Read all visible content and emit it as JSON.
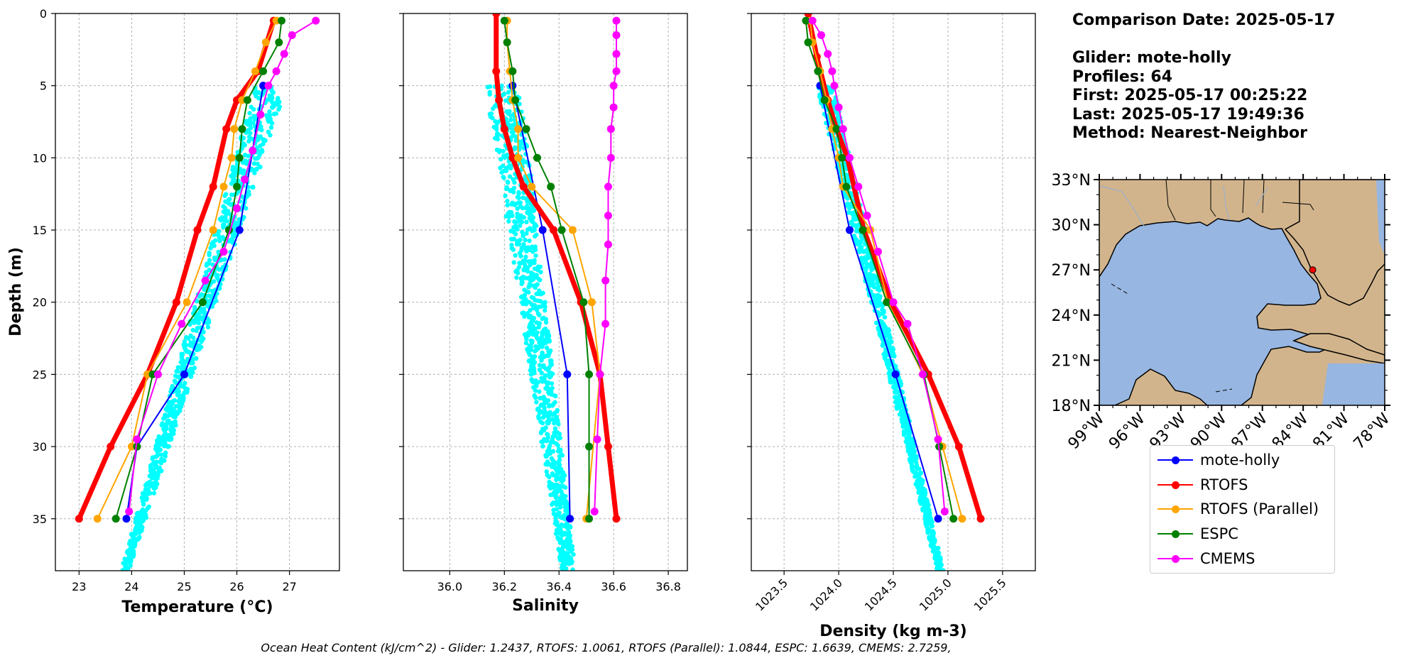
{
  "info": {
    "comparison_date": "Comparison Date: 2025-05-17",
    "glider": "Glider: mote-holly",
    "profiles": "Profiles: 64",
    "first": "First: 2025-05-17 00:25:22",
    "last": "Last: 2025-05-17 19:49:36",
    "method": "Method: Nearest-Neighbor"
  },
  "footer": "Ocean Heat Content (kJ/cm^2) - Glider: 1.2437,  RTOFS: 1.0061,  RTOFS (Parallel): 1.0844,  ESPC: 1.6639,  CMEMS: 2.7259,",
  "legend": [
    {
      "label": "mote-holly",
      "color": "#0000ff"
    },
    {
      "label": "RTOFS",
      "color": "#ff0000"
    },
    {
      "label": "RTOFS (Parallel)",
      "color": "#ffa500"
    },
    {
      "label": "ESPC",
      "color": "#008000"
    },
    {
      "label": "CMEMS",
      "color": "#ff00ff"
    }
  ],
  "colors": {
    "glider_scatter": "#00ffff",
    "land": "#d2b48c",
    "ocean": "#97b6e1",
    "marker": "#ff0000"
  },
  "chart_data": [
    {
      "type": "line",
      "xlabel": "Temperature (°C)",
      "ylabel": "Depth (m)",
      "xlim": [
        22.55,
        27.95
      ],
      "ylim": [
        38.6,
        0
      ],
      "xticks": [
        23,
        24,
        25,
        26,
        27
      ],
      "yticks": [
        0,
        5,
        10,
        15,
        20,
        25,
        30,
        35
      ],
      "grid": true,
      "scatter": {
        "name": "mote-holly",
        "depth_range": [
          5,
          38.6
        ],
        "x_min_at_top": 26.35,
        "x_max_at_top": 26.95,
        "x_min_at_bottom": 23.8,
        "x_max_at_bottom": 23.95
      },
      "series": [
        {
          "name": "mote-holly",
          "x": [
            26.5,
            26.05,
            25.0,
            24.1,
            23.9
          ],
          "y": [
            5,
            15,
            25,
            30,
            35
          ]
        },
        {
          "name": "RTOFS",
          "x": [
            26.7,
            26.4,
            26.0,
            25.8,
            25.55,
            25.25,
            24.85,
            24.3,
            23.6,
            23.0
          ],
          "y": [
            0.5,
            4,
            6,
            8,
            12,
            15,
            20,
            25,
            30,
            35
          ]
        },
        {
          "name": "RTOFS (Parallel)",
          "x": [
            26.75,
            26.55,
            26.35,
            26.1,
            25.95,
            25.9,
            25.75,
            25.55,
            25.05,
            24.3,
            24.0,
            23.35
          ],
          "y": [
            0.5,
            2,
            4,
            6,
            8,
            10,
            12,
            15,
            20,
            25,
            30,
            35
          ]
        },
        {
          "name": "ESPC",
          "x": [
            26.85,
            26.8,
            26.5,
            26.2,
            26.1,
            26.05,
            26.0,
            25.85,
            25.35,
            24.4,
            24.1,
            23.7
          ],
          "y": [
            0.5,
            2,
            4,
            6,
            8,
            10,
            12,
            15,
            20,
            25,
            30,
            35
          ]
        },
        {
          "name": "CMEMS",
          "x": [
            27.5,
            27.05,
            26.9,
            26.75,
            26.6,
            26.45,
            26.3,
            26.15,
            26.0,
            25.75,
            25.4,
            24.95,
            24.5,
            24.1,
            23.95
          ],
          "y": [
            0.5,
            1.5,
            2.8,
            4,
            5,
            7,
            9.5,
            11.5,
            13.5,
            16.5,
            18.5,
            21.5,
            25,
            29.5,
            34.5
          ]
        }
      ]
    },
    {
      "type": "line",
      "xlabel": "Salinity",
      "ylim": [
        38.6,
        0
      ],
      "xlim": [
        35.83,
        36.87
      ],
      "xticks": [
        36.0,
        36.2,
        36.4,
        36.6,
        36.8
      ],
      "grid": true,
      "scatter": {
        "name": "mote-holly",
        "depth_range": [
          5,
          38.6
        ],
        "x_min_at_top": 36.13,
        "x_max_at_top": 36.26,
        "x_min_at_bottom": 36.41,
        "x_max_at_bottom": 36.46
      },
      "series": [
        {
          "name": "mote-holly",
          "x": [
            36.23,
            36.34,
            36.43,
            36.44
          ],
          "y": [
            5,
            15,
            25,
            35
          ]
        },
        {
          "name": "RTOFS",
          "x": [
            36.17,
            36.17,
            36.18,
            36.2,
            36.23,
            36.27,
            36.38,
            36.48,
            36.55,
            36.58,
            36.61
          ],
          "y": [
            0,
            4,
            6,
            8,
            10,
            12,
            15,
            20,
            25,
            30,
            35
          ]
        },
        {
          "name": "RTOFS (Parallel)",
          "x": [
            36.21,
            36.21,
            36.22,
            36.23,
            36.25,
            36.25,
            36.3,
            36.45,
            36.52,
            36.55,
            36.5
          ],
          "y": [
            0.5,
            2,
            4,
            6,
            8,
            10,
            12,
            15,
            20,
            25,
            35
          ]
        },
        {
          "name": "ESPC",
          "x": [
            36.2,
            36.21,
            36.23,
            36.24,
            36.28,
            36.32,
            36.37,
            36.41,
            36.49,
            36.51,
            36.51,
            36.51
          ],
          "y": [
            0.5,
            2,
            4,
            6,
            8,
            10,
            12,
            15,
            20,
            25,
            30,
            35
          ]
        },
        {
          "name": "CMEMS",
          "x": [
            36.61,
            36.61,
            36.61,
            36.61,
            36.6,
            36.6,
            36.59,
            36.59,
            36.58,
            36.58,
            36.58,
            36.57,
            36.57,
            36.55,
            36.54,
            36.53
          ],
          "y": [
            0.5,
            1.5,
            2.8,
            4,
            5,
            6.5,
            8,
            10,
            12,
            14,
            16,
            18.5,
            21.5,
            25,
            29.5,
            34.5
          ]
        }
      ]
    },
    {
      "type": "line",
      "xlabel": "Density (kg m-3)",
      "ylim": [
        38.6,
        0
      ],
      "xlim": [
        1023.2,
        1025.8
      ],
      "xticks": [
        1023.5,
        1024.0,
        1024.5,
        1025.0,
        1025.5
      ],
      "grid": true,
      "scatter": {
        "name": "mote-holly",
        "depth_range": [
          5,
          38.6
        ],
        "x_min_at_top": 1023.8,
        "x_max_at_top": 1023.95,
        "x_min_at_bottom": 1024.9,
        "x_max_at_bottom": 1024.96
      },
      "series": [
        {
          "name": "mote-holly",
          "x": [
            1023.83,
            1024.1,
            1024.52,
            1024.91
          ],
          "y": [
            5,
            15,
            25,
            35
          ]
        },
        {
          "name": "RTOFS",
          "x": [
            1023.72,
            1023.8,
            1023.9,
            1023.98,
            1024.08,
            1024.23,
            1024.48,
            1024.82,
            1025.1,
            1025.3
          ],
          "y": [
            0,
            3,
            6,
            8,
            10,
            15,
            20,
            25,
            30,
            35
          ]
        },
        {
          "name": "RTOFS (Parallel)",
          "x": [
            1023.74,
            1023.76,
            1023.83,
            1023.89,
            1023.94,
            1024.0,
            1024.04,
            1024.29,
            1024.45,
            1024.77,
            1024.95,
            1025.13
          ],
          "y": [
            0.5,
            2,
            4,
            6,
            8,
            10,
            12,
            15,
            20,
            25,
            30,
            35
          ]
        },
        {
          "name": "ESPC",
          "x": [
            1023.7,
            1023.72,
            1023.81,
            1023.87,
            1023.98,
            1024.03,
            1024.07,
            1024.22,
            1024.44,
            1024.78,
            1024.92,
            1025.05
          ],
          "y": [
            0.5,
            2,
            4,
            6,
            8,
            10,
            12,
            15,
            20,
            25,
            30,
            35
          ]
        },
        {
          "name": "CMEMS",
          "x": [
            1023.76,
            1023.84,
            1023.9,
            1023.94,
            1023.96,
            1024.0,
            1024.04,
            1024.1,
            1024.18,
            1024.26,
            1024.36,
            1024.5,
            1024.63,
            1024.77,
            1024.91,
            1024.97
          ],
          "y": [
            0.5,
            1.5,
            2.8,
            4,
            5,
            6.5,
            8,
            10,
            12,
            14,
            16.5,
            20,
            21.5,
            25,
            29.5,
            34.5
          ]
        }
      ]
    },
    {
      "type": "map",
      "lon_range": [
        -99,
        -78
      ],
      "lat_range": [
        18,
        33
      ],
      "xticks": [
        "99°W",
        "96°W",
        "93°W",
        "90°W",
        "87°W",
        "84°W",
        "81°W",
        "78°W"
      ],
      "yticks": [
        "18°N",
        "21°N",
        "24°N",
        "27°N",
        "30°N",
        "33°N"
      ],
      "marker": {
        "lon": -83.3,
        "lat": 27.0
      }
    }
  ]
}
